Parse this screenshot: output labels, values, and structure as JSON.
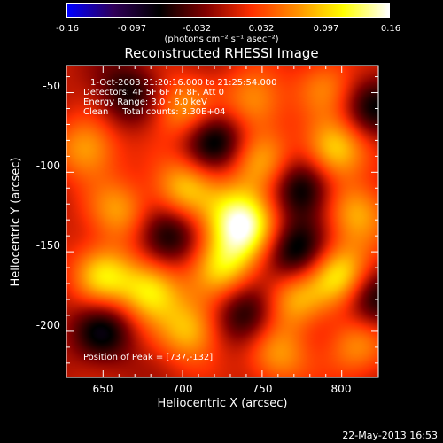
{
  "colorbar": {
    "ticks": [
      "-0.16",
      "-0.097",
      "-0.032",
      "0.032",
      "0.097",
      "0.16"
    ],
    "units_label": "(photons cm⁻² s⁻¹ asec⁻²)",
    "colormap": [
      "#0000ff",
      "#300058",
      "#000000",
      "#800000",
      "#ff3000",
      "#ff9000",
      "#ffff00",
      "#ffffff"
    ]
  },
  "chart_data": {
    "type": "heatmap",
    "title": "Reconstructed RHESSI Image",
    "xlabel": "Heliocentric X (arcsec)",
    "ylabel": "Heliocentric Y (arcsec)",
    "xlim": [
      627,
      823
    ],
    "ylim": [
      -229,
      -33
    ],
    "xticks": [
      "650",
      "700",
      "750",
      "800"
    ],
    "yticks": [
      "-50",
      "-100",
      "-150",
      "-200"
    ],
    "peak": {
      "x": 737,
      "y": -132
    },
    "sources": [
      {
        "x": 737,
        "y": -132,
        "v": 1.0
      },
      {
        "x": 750,
        "y": -95,
        "v": 0.45
      },
      {
        "x": 725,
        "y": -160,
        "v": 0.55
      },
      {
        "x": 700,
        "y": -110,
        "v": 0.55
      },
      {
        "x": 680,
        "y": -175,
        "v": 0.7
      },
      {
        "x": 650,
        "y": -165,
        "v": 0.6
      },
      {
        "x": 660,
        "y": -125,
        "v": 0.45
      },
      {
        "x": 640,
        "y": -85,
        "v": 0.5
      },
      {
        "x": 700,
        "y": -60,
        "v": 0.45
      },
      {
        "x": 745,
        "y": -55,
        "v": 0.45
      },
      {
        "x": 795,
        "y": -85,
        "v": 0.65
      },
      {
        "x": 810,
        "y": -125,
        "v": 0.5
      },
      {
        "x": 800,
        "y": -165,
        "v": 0.7
      },
      {
        "x": 770,
        "y": -180,
        "v": 0.5
      },
      {
        "x": 705,
        "y": -200,
        "v": 0.55
      },
      {
        "x": 760,
        "y": -215,
        "v": 0.45
      },
      {
        "x": 810,
        "y": -210,
        "v": 0.4
      },
      {
        "x": 790,
        "y": -45,
        "v": 0.35
      }
    ],
    "negatives": [
      {
        "x": 720,
        "y": -80,
        "v": -0.5
      },
      {
        "x": 775,
        "y": -110,
        "v": -0.55
      },
      {
        "x": 770,
        "y": -150,
        "v": -0.55
      },
      {
        "x": 690,
        "y": -140,
        "v": -0.5
      },
      {
        "x": 650,
        "y": -200,
        "v": -0.45
      },
      {
        "x": 740,
        "y": -190,
        "v": -0.45
      },
      {
        "x": 820,
        "y": -180,
        "v": -0.45
      },
      {
        "x": 665,
        "y": -50,
        "v": -0.4
      },
      {
        "x": 820,
        "y": -60,
        "v": -0.4
      }
    ]
  },
  "annotation": {
    "time_range": "1-Oct-2003 21:20:16.000 to 21:25:54.000",
    "detectors": "Detectors: 4F 5F 6F 7F 8F, Att 0",
    "energy": "Energy Range: 3.0 - 6.0 keV",
    "method": "Clean     Total counts: 3.30E+04",
    "peak_label": "Position of Peak = [737,-132]"
  },
  "footer_date": "22-May-2013 16:53"
}
